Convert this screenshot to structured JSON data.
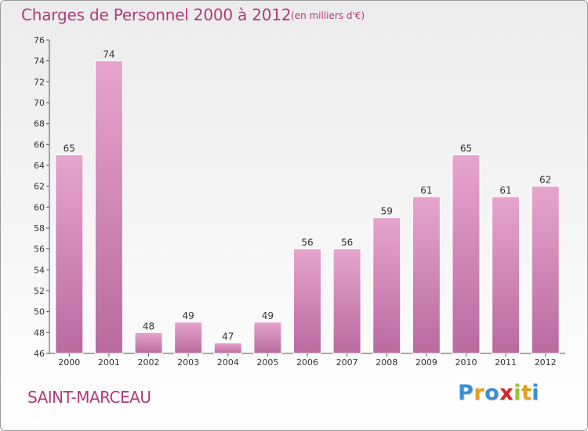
{
  "title": "Charges de Personnel 2000 à 2012",
  "subtitle": "(en milliers d'€)",
  "location": "SAINT-MARCEAU",
  "logo": {
    "letters": [
      "P",
      "r",
      "o",
      "x",
      "i",
      "t",
      "i"
    ],
    "colors": [
      "#3a8fd6",
      "#e1a21e",
      "#3a8fd6",
      "#d8242c",
      "#9ac33a",
      "#e1a21e",
      "#3a8fd6"
    ]
  },
  "colors": {
    "text_accent": "#b03a79",
    "bar_light": "#e6a5cd",
    "bar_dark": "#b96aa0"
  },
  "chart_data": {
    "type": "bar",
    "title": "Charges de Personnel 2000 à 2012",
    "subtitle": "(en milliers d'€)",
    "categories": [
      "2000",
      "2001",
      "2002",
      "2003",
      "2004",
      "2005",
      "2006",
      "2007",
      "2008",
      "2009",
      "2010",
      "2011",
      "2012"
    ],
    "values": [
      65,
      74,
      48,
      49,
      47,
      49,
      56,
      56,
      59,
      61,
      65,
      61,
      62
    ],
    "ylim": [
      46,
      76
    ],
    "yticks": [
      46,
      48,
      50,
      52,
      54,
      56,
      58,
      60,
      62,
      64,
      66,
      68,
      70,
      72,
      74,
      76
    ],
    "grid": false,
    "data_labels": true
  }
}
